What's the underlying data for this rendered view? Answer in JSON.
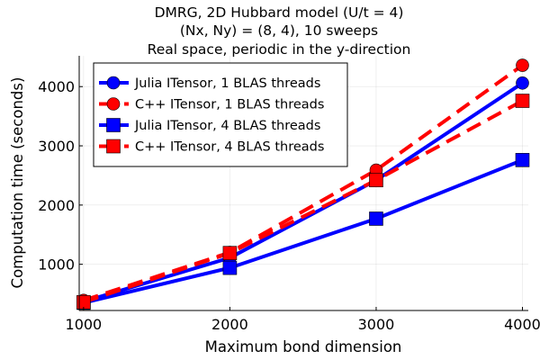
{
  "chart_data": {
    "type": "line",
    "title_lines": [
      "DMRG, 2D Hubbard model (U/t = 4)",
      "(Nx, Ny) = (8, 4), 10 sweeps",
      "Real space, periodic in the y-direction"
    ],
    "xlabel": "Maximum bond dimension",
    "ylabel": "Computation time (seconds)",
    "xlim": [
      970,
      4040
    ],
    "ylim": [
      220,
      4520
    ],
    "xticks": [
      1000,
      2000,
      3000,
      4000
    ],
    "yticks": [
      1000,
      2000,
      3000,
      4000
    ],
    "grid": true,
    "legend_position": "top-left",
    "x": [
      1000,
      2000,
      3000,
      4000
    ],
    "series": [
      {
        "name": "Julia ITensor, 1 BLAS threads",
        "values": [
          370,
          1110,
          2420,
          4060
        ],
        "color": "#0000ff",
        "line": "solid",
        "marker": "circle"
      },
      {
        "name": "C++ ITensor, 1 BLAS threads",
        "values": [
          390,
          1200,
          2590,
          4360
        ],
        "color": "#ff0000",
        "line": "dashed",
        "marker": "circle"
      },
      {
        "name": "Julia ITensor, 4 BLAS threads",
        "values": [
          350,
          940,
          1770,
          2760
        ],
        "color": "#0000ff",
        "line": "solid",
        "marker": "square"
      },
      {
        "name": "C++ ITensor, 4 BLAS threads",
        "values": [
          360,
          1190,
          2420,
          3760
        ],
        "color": "#ff0000",
        "line": "dashed",
        "marker": "square"
      }
    ]
  }
}
